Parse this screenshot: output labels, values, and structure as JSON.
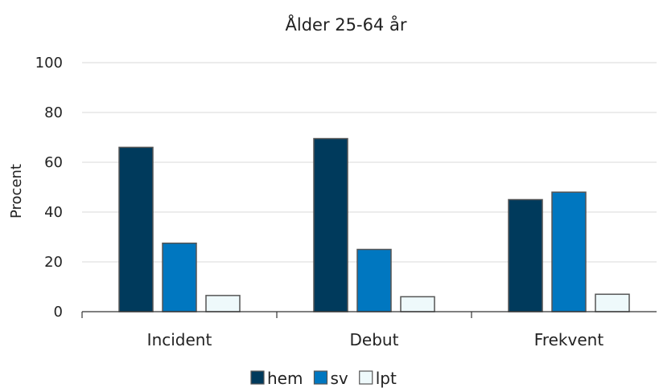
{
  "chart_data": {
    "type": "bar",
    "title": "Ålder 25-64 år",
    "ylabel": "Procent",
    "xlabel": "",
    "ylim": [
      0,
      100
    ],
    "yticks": [
      0,
      20,
      40,
      60,
      80,
      100
    ],
    "grid": true,
    "legend_position": "bottom",
    "categories": [
      "Incident",
      "Debut",
      "Frekvent"
    ],
    "series": [
      {
        "name": "hem",
        "color": "#003a5c",
        "values": [
          66,
          69.5,
          45
        ]
      },
      {
        "name": "sv",
        "color": "#0077c0",
        "values": [
          27.5,
          25,
          48
        ]
      },
      {
        "name": "lpt",
        "color": "#eef9fb",
        "values": [
          6.5,
          6,
          7
        ]
      }
    ]
  }
}
